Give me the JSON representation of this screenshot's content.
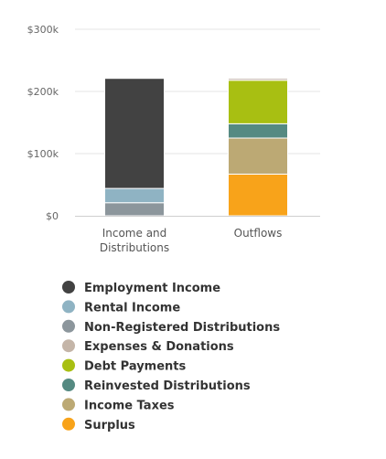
{
  "chart_data": {
    "type": "bar",
    "stacked": true,
    "categories": [
      "Income and Distributions",
      "Outflows"
    ],
    "category_lines": [
      [
        "Income and",
        "Distributions"
      ],
      [
        "Outflows"
      ]
    ],
    "ylim": [
      0,
      300000
    ],
    "yticks": [
      0,
      100000,
      200000,
      300000
    ],
    "ytick_labels": [
      "$0",
      "$100k",
      "$200k",
      "$300k"
    ],
    "grid": true,
    "legend_position": "bottom-left",
    "series": [
      {
        "name": "Employment Income",
        "color": "#424242",
        "values": [
          177000,
          0
        ]
      },
      {
        "name": "Rental Income",
        "color": "#8fb3c3",
        "values": [
          23000,
          0
        ]
      },
      {
        "name": "Non-Registered Distributions",
        "color": "#8c969c",
        "values": [
          21000,
          0
        ]
      },
      {
        "name": "Expenses & Donations",
        "color": "#c4b5a8",
        "values": [
          0,
          3000
        ]
      },
      {
        "name": "Debt Payments",
        "color": "#a8bf12",
        "values": [
          0,
          70000
        ]
      },
      {
        "name": "Reinvested Distributions",
        "color": "#558a82",
        "values": [
          0,
          23000
        ]
      },
      {
        "name": "Income Taxes",
        "color": "#bca974",
        "values": [
          0,
          58000
        ]
      },
      {
        "name": "Surplus",
        "color": "#f8a31a",
        "values": [
          0,
          67000
        ]
      }
    ]
  }
}
